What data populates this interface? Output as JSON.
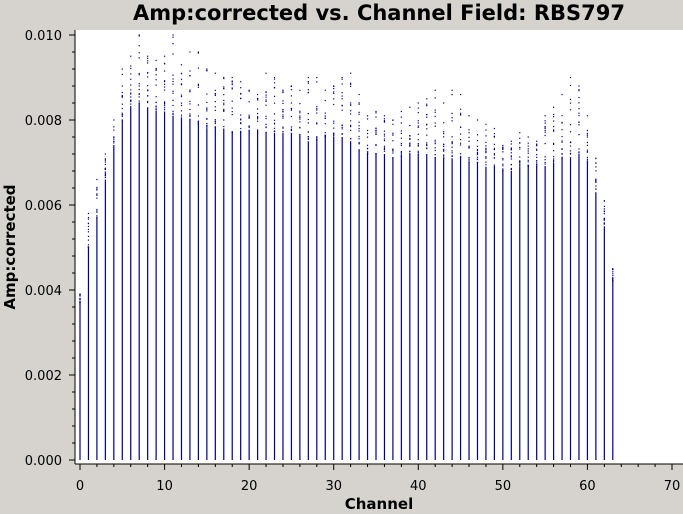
{
  "chart_data": {
    "type": "scatter",
    "title": "Amp:corrected vs. Channel Field: RBS797",
    "xlabel": "Channel",
    "ylabel": "Amp:corrected",
    "xlim": [
      0,
      70
    ],
    "ylim": [
      0,
      0.01
    ],
    "x_ticks": [
      0,
      10,
      20,
      30,
      40,
      50,
      60,
      70
    ],
    "x_tick_labels": [
      "0",
      "10",
      "20",
      "30",
      "40",
      "50",
      "60",
      "70"
    ],
    "y_ticks": [
      0,
      0.002,
      0.004,
      0.006,
      0.008,
      0.01
    ],
    "y_tick_labels": [
      "0.000",
      "0.002",
      "0.004",
      "0.006",
      "0.008",
      "0.010"
    ],
    "grid": false,
    "point_color": "#00008b",
    "background_color": "#ffffff",
    "frame_color": "#d6d3ce",
    "series": [
      {
        "x": [
          0,
          1,
          2,
          3,
          4,
          5,
          6,
          7,
          8,
          9,
          10,
          11,
          12,
          13,
          14,
          15,
          16,
          17,
          18,
          19,
          20,
          21,
          22,
          23,
          24,
          25,
          26,
          27,
          28,
          29,
          30,
          31,
          32,
          33,
          34,
          35,
          36,
          37,
          38,
          39,
          40,
          41,
          42,
          43,
          44,
          45,
          46,
          47,
          48,
          49,
          50,
          51,
          52,
          53,
          54,
          55,
          56,
          57,
          58,
          59,
          60,
          61,
          62,
          63
        ],
        "dense_top": [
          0.0037,
          0.005,
          0.0057,
          0.0066,
          0.0073,
          0.008,
          0.0083,
          0.0084,
          0.0083,
          0.0082,
          0.0082,
          0.0081,
          0.008,
          0.008,
          0.0079,
          0.0078,
          0.0078,
          0.0078,
          0.0077,
          0.0077,
          0.0077,
          0.0077,
          0.0077,
          0.0077,
          0.0077,
          0.0077,
          0.0076,
          0.0075,
          0.0075,
          0.0076,
          0.0076,
          0.0076,
          0.0075,
          0.0073,
          0.0072,
          0.0072,
          0.0072,
          0.0071,
          0.0071,
          0.0072,
          0.0072,
          0.0072,
          0.0071,
          0.0071,
          0.0071,
          0.0071,
          0.007,
          0.007,
          0.0069,
          0.0069,
          0.0068,
          0.0068,
          0.0069,
          0.0069,
          0.0069,
          0.0069,
          0.007,
          0.0071,
          0.0071,
          0.0072,
          0.007,
          0.0063,
          0.0055,
          0.0042
        ],
        "max": [
          0.0039,
          0.0058,
          0.0066,
          0.0072,
          0.008,
          0.0092,
          0.0095,
          0.01,
          0.0095,
          0.0094,
          0.0095,
          0.01,
          0.0093,
          0.0096,
          0.0096,
          0.0092,
          0.0091,
          0.009,
          0.009,
          0.0089,
          0.0087,
          0.0086,
          0.0091,
          0.009,
          0.0087,
          0.0088,
          0.0087,
          0.009,
          0.009,
          0.0087,
          0.0088,
          0.009,
          0.0091,
          0.0086,
          0.0081,
          0.0082,
          0.0081,
          0.008,
          0.0082,
          0.0083,
          0.0084,
          0.0085,
          0.0087,
          0.0084,
          0.0087,
          0.0086,
          0.0081,
          0.008,
          0.0079,
          0.0078,
          0.0074,
          0.0075,
          0.0077,
          0.0076,
          0.0075,
          0.0081,
          0.0083,
          0.0086,
          0.009,
          0.0088,
          0.0081,
          0.0071,
          0.0061,
          0.0045
        ]
      }
    ]
  }
}
